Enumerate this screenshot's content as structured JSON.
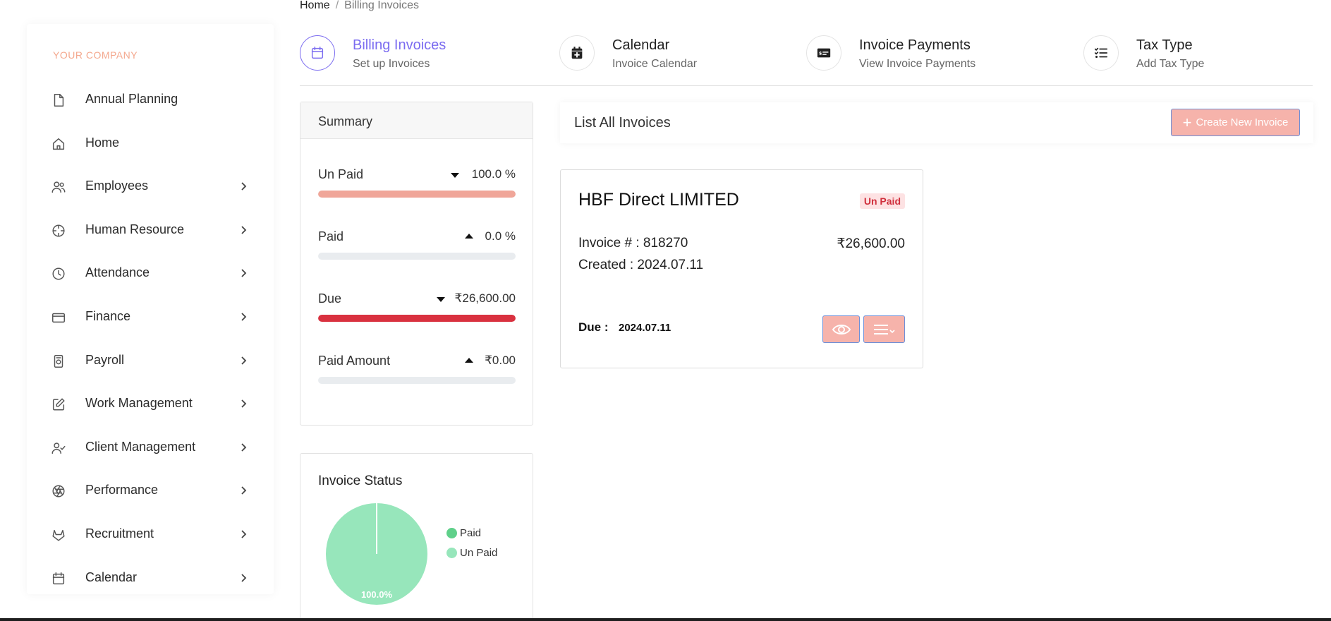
{
  "sidebar": {
    "company": "YOUR COMPANY",
    "items": [
      {
        "label": "Annual Planning",
        "icon": "file-icon",
        "has_children": false
      },
      {
        "label": "Home",
        "icon": "home-icon",
        "has_children": false
      },
      {
        "label": "Employees",
        "icon": "users-icon",
        "has_children": true
      },
      {
        "label": "Human Resource",
        "icon": "crosshair-icon",
        "has_children": true
      },
      {
        "label": "Attendance",
        "icon": "clock-icon",
        "has_children": true
      },
      {
        "label": "Finance",
        "icon": "credit-card-icon",
        "has_children": true
      },
      {
        "label": "Payroll",
        "icon": "payroll-icon",
        "has_children": true
      },
      {
        "label": "Work Management",
        "icon": "edit-icon",
        "has_children": true
      },
      {
        "label": "Client Management",
        "icon": "user-check-icon",
        "has_children": true
      },
      {
        "label": "Performance",
        "icon": "aperture-icon",
        "has_children": true
      },
      {
        "label": "Recruitment",
        "icon": "gitlab-icon",
        "has_children": true
      },
      {
        "label": "Calendar",
        "icon": "calendar-icon",
        "has_children": true
      }
    ]
  },
  "breadcrumb": {
    "home": "Home",
    "separator": "/",
    "current": "Billing Invoices"
  },
  "tabs": [
    {
      "title": "Billing Invoices",
      "subtitle": "Set up Invoices",
      "icon": "calendar-outline-icon",
      "active": true
    },
    {
      "title": "Calendar",
      "subtitle": "Invoice Calendar",
      "icon": "calendar-plus-icon",
      "active": false
    },
    {
      "title": "Invoice Payments",
      "subtitle": "View Invoice Payments",
      "icon": "money-check-icon",
      "active": false
    },
    {
      "title": "Tax Type",
      "subtitle": "Add Tax Type",
      "icon": "list-check-icon",
      "active": false
    }
  ],
  "summary": {
    "title": "Summary",
    "metrics": [
      {
        "label": "Un Paid",
        "trend": "down",
        "value": "100.0 %",
        "fill": 1.0,
        "color": "#f0a699"
      },
      {
        "label": "Paid",
        "trend": "up",
        "value": "0.0 %",
        "fill": 0.0,
        "color": "#e9ecef"
      },
      {
        "label": "Due",
        "trend": "down",
        "value": "₹26,600.00",
        "fill": 1.0,
        "color": "#d9313f"
      },
      {
        "label": "Paid Amount",
        "trend": "up",
        "value": "₹0.00",
        "fill": 0.0,
        "color": "#e9ecef"
      }
    ]
  },
  "status": {
    "title": "Invoice Status",
    "legend": [
      {
        "label": "Paid",
        "color": "#5fd08a"
      },
      {
        "label": "Un Paid",
        "color": "#97e6bb"
      }
    ]
  },
  "chart_data": {
    "type": "pie",
    "title": "Invoice Status",
    "categories": [
      "Paid",
      "Un Paid"
    ],
    "values": [
      0,
      100
    ],
    "slice_labels": [
      "",
      "100.0%"
    ],
    "colors": [
      "#5fd08a",
      "#97e6bb"
    ],
    "legend_position": "right"
  },
  "list": {
    "title": "List All Invoices",
    "create_label": "Create New Invoice"
  },
  "invoice": {
    "company": "HBF Direct LIMITED",
    "status": "Un Paid",
    "number": "Invoice # : 818270",
    "amount": "₹26,600.00",
    "created": "Created : 2024.07.11",
    "due_label": "Due :",
    "due_value": "2024.07.11"
  },
  "colors": {
    "accent": "#7b6cf0",
    "button": "#f6b3ab",
    "button_border": "#6c8fd8",
    "company": "#f4a88e"
  }
}
